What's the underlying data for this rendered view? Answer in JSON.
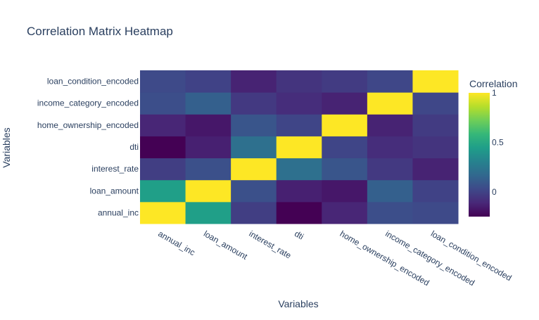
{
  "chart_data": {
    "type": "heatmap",
    "title": "Correlation Matrix Heatmap",
    "xlabel": "Variables",
    "ylabel": "Variables",
    "x": [
      "annual_inc",
      "loan_amount",
      "interest_rate",
      "dti",
      "home_ownership_encoded",
      "income_category_encoded",
      "loan_condition_encoded"
    ],
    "y": [
      "annual_inc",
      "loan_amount",
      "interest_rate",
      "dti",
      "home_ownership_encoded",
      "income_category_encoded",
      "loan_condition_encoded"
    ],
    "z": [
      [
        1.0,
        0.45,
        -0.02,
        -0.25,
        -0.12,
        0.05,
        0.03
      ],
      [
        0.45,
        1.0,
        0.06,
        -0.14,
        -0.17,
        0.13,
        0.0
      ],
      [
        -0.02,
        0.06,
        1.0,
        0.21,
        0.08,
        -0.04,
        -0.13
      ],
      [
        -0.25,
        -0.14,
        0.21,
        1.0,
        0.01,
        -0.09,
        -0.06
      ],
      [
        -0.12,
        -0.17,
        0.08,
        0.01,
        1.0,
        -0.13,
        -0.03
      ],
      [
        0.05,
        0.13,
        -0.04,
        -0.09,
        -0.13,
        1.0,
        0.02
      ],
      [
        0.03,
        0.0,
        -0.13,
        -0.06,
        -0.03,
        0.02,
        1.0
      ]
    ],
    "zrange": [
      -0.25,
      1
    ],
    "colorscale": "Viridis",
    "colorbar": {
      "title": "Correlation",
      "ticks": [
        0,
        0.5,
        1
      ],
      "tick_labels": [
        "0",
        "0.5",
        "1"
      ]
    }
  }
}
